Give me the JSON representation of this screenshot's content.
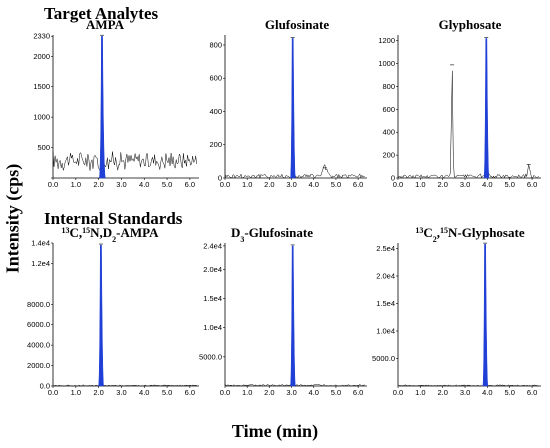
{
  "section_titles": {
    "top": "Target Analytes",
    "bottom": "Internal Standards"
  },
  "ylabel": "Intensity (cps)",
  "xlabel": "Time (min)",
  "colors": {
    "peak_fill": "#1f3fd6",
    "trace": "#000000"
  },
  "chart_data": [
    {
      "type": "line",
      "title": "AMPA",
      "title_parts": [
        {
          "text": "AMPA"
        }
      ],
      "xlim": [
        0,
        6.4
      ],
      "ylim": [
        0,
        2350
      ],
      "x_ticks": [
        "0.0",
        "1.0",
        "2.0",
        "3.0",
        "4.0",
        "5.0",
        "6.0"
      ],
      "x_tick_values": [
        0,
        1,
        2,
        3,
        4,
        5,
        6
      ],
      "y_ticks": [
        "",
        "500",
        "1000",
        "1500",
        "2000",
        "2330"
      ],
      "y_tick_values": [
        0,
        500,
        1000,
        1500,
        2000,
        2330
      ],
      "peaks": [
        {
          "x": 2.15,
          "height": 2330,
          "width": 0.055,
          "filled": true
        }
      ],
      "noise": {
        "baseline": 290,
        "amplitude": 190,
        "from": 0,
        "to": 6.3
      }
    },
    {
      "type": "line",
      "title": "Glufosinate",
      "title_parts": [
        {
          "text": "Glufosinate"
        }
      ],
      "xlim": [
        0,
        6.4
      ],
      "ylim": [
        0,
        860
      ],
      "x_ticks": [
        "0.0",
        "1.0",
        "2.0",
        "3.0",
        "4.0",
        "5.0",
        "6.0"
      ],
      "x_tick_values": [
        0,
        1,
        2,
        3,
        4,
        5,
        6
      ],
      "y_ticks": [
        "0",
        "200",
        "400",
        "600",
        "800"
      ],
      "y_tick_values": [
        0,
        200,
        400,
        600,
        800
      ],
      "peaks": [
        {
          "x": 3.05,
          "height": 840,
          "width": 0.045,
          "filled": true
        },
        {
          "x": 4.5,
          "height": 55,
          "width": 0.12,
          "filled": false
        }
      ],
      "noise": {
        "baseline": 12,
        "amplitude": 20,
        "from": 0,
        "to": 6.3
      }
    },
    {
      "type": "line",
      "title": "Glyphosate",
      "title_parts": [
        {
          "text": "Glyphosate"
        }
      ],
      "xlim": [
        0,
        6.4
      ],
      "ylim": [
        0,
        1250
      ],
      "x_ticks": [
        "0.0",
        "1.0",
        "2.0",
        "3.0",
        "4.0",
        "5.0",
        "6.0"
      ],
      "x_tick_values": [
        0,
        1,
        2,
        3,
        4,
        5,
        6
      ],
      "y_ticks": [
        "0",
        "200",
        "400",
        "600",
        "800",
        "1000",
        "1200"
      ],
      "y_tick_values": [
        0,
        200,
        400,
        600,
        800,
        1000,
        1200
      ],
      "peaks": [
        {
          "x": 2.42,
          "height": 980,
          "width": 0.04,
          "filled": false
        },
        {
          "x": 3.95,
          "height": 1220,
          "width": 0.045,
          "filled": true
        },
        {
          "x": 5.85,
          "height": 110,
          "width": 0.05,
          "filled": false
        }
      ],
      "noise": {
        "baseline": 15,
        "amplitude": 25,
        "from": 0,
        "to": 6.3
      }
    },
    {
      "type": "line",
      "title": "13C,15N,D2-AMPA",
      "title_parts": [
        {
          "text": "13",
          "sup": true
        },
        {
          "text": "C,"
        },
        {
          "text": "15",
          "sup": true
        },
        {
          "text": "N,D"
        },
        {
          "text": "2",
          "sub": true
        },
        {
          "text": "-AMPA"
        }
      ],
      "xlim": [
        0,
        6.4
      ],
      "ylim": [
        0,
        14000
      ],
      "x_ticks": [
        "0.0",
        "1.0",
        "2.0",
        "3.0",
        "4.0",
        "5.0",
        "6.0"
      ],
      "x_tick_values": [
        0,
        1,
        2,
        3,
        4,
        5,
        6
      ],
      "y_ticks": [
        "0.0",
        "2000.0",
        "4000.0",
        "6000.0",
        "8000.0",
        "1.2e4",
        "1.4e4"
      ],
      "y_tick_values": [
        0,
        2000,
        4000,
        6000,
        8000,
        12000,
        14000
      ],
      "peaks": [
        {
          "x": 2.1,
          "height": 13800,
          "width": 0.045,
          "filled": true
        }
      ],
      "noise": {
        "baseline": 40,
        "amplitude": 80,
        "from": 0,
        "to": 6.3
      }
    },
    {
      "type": "line",
      "title": "D3-Glufosinate",
      "title_parts": [
        {
          "text": "D"
        },
        {
          "text": "3",
          "sub": true
        },
        {
          "text": "-Glufosinate"
        }
      ],
      "xlim": [
        0,
        6.4
      ],
      "ylim": [
        0,
        24500
      ],
      "x_ticks": [
        "0.0",
        "1.0",
        "2.0",
        "3.0",
        "4.0",
        "5.0",
        "6.0"
      ],
      "x_tick_values": [
        0,
        1,
        2,
        3,
        4,
        5,
        6
      ],
      "y_ticks": [
        "5000.0",
        "1.0e4",
        "1.5e4",
        "2.0e4",
        "2.4e4"
      ],
      "y_tick_values": [
        5000,
        10000,
        15000,
        20000,
        24000
      ],
      "peaks": [
        {
          "x": 3.05,
          "height": 24000,
          "width": 0.045,
          "filled": true
        }
      ],
      "noise": {
        "baseline": 120,
        "amplitude": 200,
        "from": 0,
        "to": 6.3
      }
    },
    {
      "type": "line",
      "title": "13C2,15N-Glyphosate",
      "title_parts": [
        {
          "text": "13",
          "sup": true
        },
        {
          "text": "C"
        },
        {
          "text": "2",
          "sub": true
        },
        {
          "text": ","
        },
        {
          "text": "15",
          "sup": true
        },
        {
          "text": "N-Glyphosate"
        }
      ],
      "xlim": [
        0,
        6.4
      ],
      "ylim": [
        0,
        26000
      ],
      "x_ticks": [
        "0.0",
        "1.0",
        "2.0",
        "3.0",
        "4.0",
        "5.0",
        "6.0"
      ],
      "x_tick_values": [
        0,
        1,
        2,
        3,
        4,
        5,
        6
      ],
      "y_ticks": [
        "5000.0",
        "1.0e4",
        "1.5e4",
        "2.0e4",
        "2.5e4"
      ],
      "y_tick_values": [
        5000,
        10000,
        15000,
        20000,
        25000
      ],
      "peaks": [
        {
          "x": 3.9,
          "height": 25800,
          "width": 0.045,
          "filled": true
        }
      ],
      "noise": {
        "baseline": 90,
        "amplitude": 160,
        "from": 0,
        "to": 6.3
      }
    }
  ]
}
